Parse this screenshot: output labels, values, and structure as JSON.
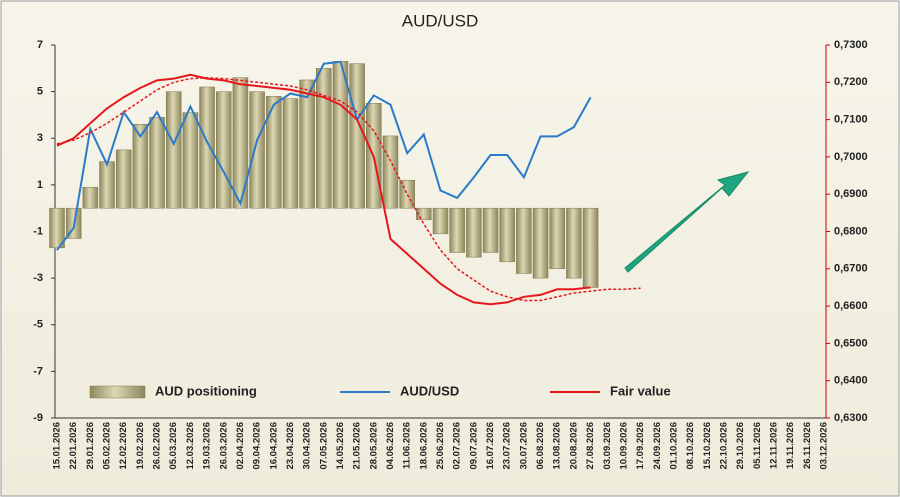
{
  "chart_data": {
    "type": "bar_line",
    "title": "AUD/USD",
    "categories": [
      "15.01.2026",
      "22.01.2026",
      "29.01.2026",
      "05.02.2026",
      "12.02.2026",
      "19.02.2026",
      "26.02.2026",
      "05.03.2026",
      "12.03.2026",
      "19.03.2026",
      "26.03.2026",
      "02.04.2026",
      "09.04.2026",
      "16.04.2026",
      "23.04.2026",
      "30.04.2026",
      "07.05.2026",
      "14.05.2026",
      "21.05.2026",
      "28.05.2026",
      "04.06.2026",
      "11.06.2026",
      "18.06.2026",
      "25.06.2026",
      "02.07.2026",
      "09.07.2026",
      "16.07.2026",
      "23.07.2026",
      "30.07.2026",
      "06.08.2026",
      "13.08.2026",
      "20.08.2026",
      "27.08.2026",
      "03.09.2026",
      "10.09.2026",
      "17.09.2026",
      "24.09.2026",
      "01.10.2026",
      "08.10.2026",
      "15.10.2026",
      "22.10.2026",
      "29.10.2026",
      "05.11.2026",
      "12.11.2026",
      "19.11.2026",
      "26.11.2026",
      "03.12.2026"
    ],
    "series": [
      {
        "name": "AUD positioning",
        "type": "bar",
        "color": "#c9c39b",
        "axis": "y",
        "values": [
          -1.7,
          -1.3,
          0.9,
          2.0,
          2.5,
          3.6,
          3.9,
          5.0,
          4.1,
          5.2,
          5.0,
          5.6,
          5.0,
          4.8,
          4.7,
          5.5,
          6.0,
          6.3,
          6.2,
          4.5,
          3.1,
          1.2,
          -0.5,
          -1.1,
          -1.9,
          -2.1,
          -1.9,
          -2.3,
          -2.8,
          -3.0,
          -2.6,
          -3.0,
          -3.4,
          null,
          null,
          null,
          null,
          null,
          null,
          null,
          null,
          null,
          null,
          null,
          null,
          null,
          null
        ]
      },
      {
        "name": "AUD/USD",
        "type": "line",
        "color": "#2b7bc8",
        "axis": "y2",
        "values": [
          0.675,
          0.681,
          0.7075,
          0.698,
          0.712,
          0.7055,
          0.712,
          0.7035,
          0.7135,
          0.704,
          0.696,
          0.6875,
          0.7045,
          0.714,
          0.717,
          0.716,
          0.725,
          0.7255,
          0.71,
          0.7165,
          0.714,
          0.701,
          0.706,
          0.691,
          0.689,
          0.6945,
          0.7005,
          0.7005,
          0.6945,
          0.7055,
          0.7055,
          0.708,
          0.716,
          null,
          null,
          null,
          null,
          null,
          null,
          null,
          null,
          null,
          null,
          null,
          null,
          null,
          null
        ]
      },
      {
        "name": "Fair value",
        "type": "line",
        "color": "#e5171b",
        "axis": "y2",
        "values": [
          0.703,
          0.705,
          0.709,
          0.713,
          0.716,
          0.7185,
          0.7205,
          0.721,
          0.722,
          0.721,
          0.7205,
          0.7195,
          0.719,
          0.7185,
          0.718,
          0.717,
          0.716,
          0.714,
          0.71,
          0.7,
          0.678,
          0.674,
          0.67,
          0.666,
          0.663,
          0.661,
          0.6605,
          0.661,
          0.6625,
          0.663,
          0.6645,
          0.6645,
          0.665,
          null,
          null,
          null,
          null,
          null,
          null,
          null,
          null,
          null,
          null,
          null,
          null,
          null,
          null
        ]
      },
      {
        "type": "line",
        "dashed": true,
        "color": "#e5171b",
        "axis": "y2",
        "values": [
          0.7035,
          0.7045,
          0.7065,
          0.709,
          0.712,
          0.715,
          0.718,
          0.72,
          0.721,
          0.7212,
          0.721,
          0.7205,
          0.72,
          0.7195,
          0.719,
          0.718,
          0.7165,
          0.715,
          0.712,
          0.707,
          0.699,
          0.69,
          0.682,
          0.675,
          0.67,
          0.667,
          0.664,
          0.6625,
          0.6615,
          0.6615,
          0.6625,
          0.6635,
          0.664,
          0.6645,
          0.6645,
          0.6648,
          null,
          null,
          null,
          null,
          null,
          null,
          null,
          null,
          null,
          null,
          null
        ]
      }
    ],
    "ylim": [
      -9,
      7
    ],
    "yticks": [
      -9,
      -7,
      -5,
      -3,
      -1,
      1,
      3,
      5,
      7
    ],
    "y2lim": [
      0.63,
      0.73
    ],
    "y2ticks": [
      {
        "value": 0.63,
        "label": "0,6300"
      },
      {
        "value": 0.64,
        "label": "0,6400"
      },
      {
        "value": 0.65,
        "label": "0,6500"
      },
      {
        "value": 0.66,
        "label": "0,6600"
      },
      {
        "value": 0.67,
        "label": "0,6700"
      },
      {
        "value": 0.68,
        "label": "0,6800"
      },
      {
        "value": 0.69,
        "label": "0,6900"
      },
      {
        "value": 0.7,
        "label": "0,7000"
      },
      {
        "value": 0.71,
        "label": "0,7100"
      },
      {
        "value": 0.72,
        "label": "0,7200"
      },
      {
        "value": 0.73,
        "label": "0,7300"
      }
    ]
  }
}
